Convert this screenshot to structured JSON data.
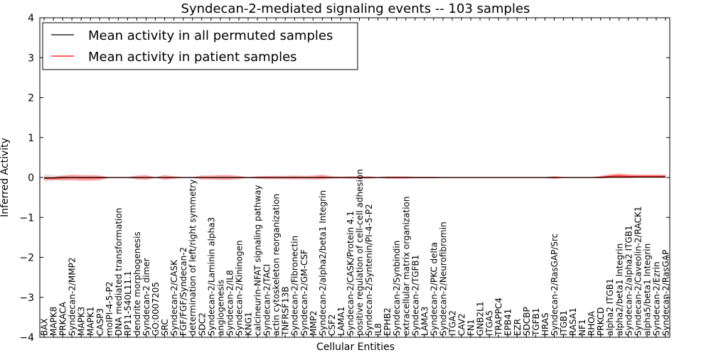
{
  "chart_data": {
    "type": "line",
    "title": "Syndecan-2-mediated signaling events -- 103 samples",
    "xlabel": "Cellular Entities",
    "ylabel": "Inferred Activity",
    "ylim": [
      -4,
      4
    ],
    "yticks": [
      "−4",
      "−3",
      "−2",
      "−1",
      "0",
      "1",
      "2",
      "3",
      "4"
    ],
    "legend_position": "top-left",
    "categories": [
      "BAX",
      "MAPK8",
      "PRKACA",
      "Syndecan-2/MMP2",
      "MAPK3",
      "MAPK1",
      "CASP3",
      "moIPI-4-5-P2",
      "DNA mediated transformation",
      "RP11-540L11.1",
      "dendrite morphogenesis",
      "Syndecan-2 dimer",
      "GO:0007205",
      "SRC",
      "Syndecan-2/CASK",
      "FGF/FGF/Syndecan-2",
      "determination of left/right symmetry",
      "SDC2",
      "Syndecan-2/Laminin alpha3",
      "angiogenesis",
      "Syndecan-2/IL8",
      "Syndecan-2/Kininogen",
      "KNG1",
      "calcineurin-NFAT signaling pathway",
      "Syndecan-2/TACI",
      "actin cytoskeleton reorganization",
      "TNFRSF13B",
      "Syndecan-2/Fibronectin",
      "Syndecan-2/GM-CSF",
      "MMP2",
      "Syndecan-2/alpha2/beta1 Integrin",
      "CSF2",
      "LAMA1",
      "Syndecan-2/CASK/Protein 4.1",
      "positive regulation of cell-cell adhesion",
      "Syndecan-2/Syntenin/PI-4-5-P2",
      "IL8",
      "EPHB2",
      "Syndecan-2/Synbindin",
      "extracellular matrix organization",
      "Syndecan-2/TGFB1",
      "LAMA3",
      "Syndecan-2/PKC delta",
      "Syndecan-2/Neurofibromin",
      "ITGA2",
      "CAV2",
      "FN1",
      "GNB2L1",
      "ITGA5",
      "TRAPPC4",
      "EPB41",
      "EZR",
      "SDCBP",
      "TGFB1",
      "HRAS",
      "Syndecan-2/RasGAP/Src",
      "ITGB1",
      "RASA1",
      "NF1",
      "RHOA",
      "PRKCD",
      "alpha2 ITGB1",
      "alpha2/beta1 Integrin",
      "Syndecan-2/alpha2 ITGB1",
      "Syndecan-2/Caveolin-2/RACK1",
      "alpha5/beta1 Integrin",
      "Syndecan-2/Ezrin",
      "Syndecan-2/RasGAP"
    ],
    "series": [
      {
        "name": "Mean activity in all permuted samples",
        "color": "#000000",
        "values": [
          -0.01,
          -0.01,
          0.0,
          0.0,
          0.0,
          0.0,
          0.0,
          0.0,
          0.0,
          0.0,
          0.0,
          0.0,
          0.0,
          0.0,
          0.0,
          0.0,
          0.0,
          0.0,
          0.0,
          0.0,
          0.0,
          0.0,
          0.0,
          0.0,
          0.0,
          0.0,
          0.0,
          0.0,
          0.0,
          0.0,
          0.0,
          0.0,
          0.0,
          0.0,
          0.0,
          0.0,
          0.0,
          0.0,
          0.0,
          0.0,
          0.0,
          0.0,
          0.0,
          0.0,
          0.0,
          0.0,
          0.0,
          0.0,
          0.0,
          0.0,
          0.0,
          0.0,
          0.0,
          0.0,
          0.0,
          0.0,
          0.0,
          0.0,
          0.0,
          0.0,
          0.0,
          0.01,
          0.01,
          0.01,
          0.01,
          0.01,
          0.01,
          0.01
        ],
        "band": [
          0.1,
          0.07,
          0.04,
          0.03,
          0.02,
          0.02,
          0.02,
          0.01,
          0.01,
          0.01,
          0.01,
          0.01,
          0.01,
          0.01,
          0.01,
          0.01,
          0.01,
          0.01,
          0.01,
          0.01,
          0.01,
          0.01,
          0.01,
          0.01,
          0.01,
          0.01,
          0.01,
          0.01,
          0.01,
          0.01,
          0.01,
          0.01,
          0.01,
          0.01,
          0.01,
          0.01,
          0.01,
          0.01,
          0.01,
          0.01,
          0.01,
          0.01,
          0.01,
          0.01,
          0.01,
          0.01,
          0.01,
          0.01,
          0.01,
          0.01,
          0.01,
          0.01,
          0.01,
          0.01,
          0.01,
          0.01,
          0.01,
          0.01,
          0.01,
          0.01,
          0.01,
          0.01,
          0.01,
          0.01,
          0.01,
          0.01,
          0.01,
          0.01
        ]
      },
      {
        "name": "Mean activity in patient samples",
        "color": "#ff0000",
        "values": [
          -0.02,
          -0.02,
          -0.01,
          0.0,
          -0.01,
          -0.01,
          -0.01,
          0.0,
          0.0,
          0.0,
          0.0,
          0.0,
          0.0,
          0.0,
          0.0,
          0.0,
          0.0,
          0.0,
          0.0,
          0.0,
          0.0,
          0.0,
          0.0,
          0.0,
          0.0,
          0.0,
          0.0,
          0.0,
          0.0,
          0.0,
          0.01,
          0.0,
          0.0,
          0.0,
          0.0,
          0.0,
          0.0,
          0.0,
          0.0,
          0.0,
          0.0,
          0.0,
          0.0,
          0.0,
          0.0,
          0.0,
          0.0,
          0.0,
          0.0,
          0.0,
          0.0,
          0.0,
          0.0,
          0.0,
          0.0,
          0.0,
          0.0,
          0.0,
          0.0,
          0.0,
          0.01,
          0.03,
          0.04,
          0.03,
          0.03,
          0.03,
          0.03,
          0.03
        ],
        "band": [
          0.04,
          0.04,
          0.06,
          0.07,
          0.07,
          0.07,
          0.06,
          0.01,
          0.01,
          0.01,
          0.05,
          0.06,
          0.01,
          0.06,
          0.03,
          0.01,
          0.01,
          0.05,
          0.05,
          0.06,
          0.06,
          0.04,
          0.01,
          0.03,
          0.04,
          0.04,
          0.04,
          0.05,
          0.04,
          0.05,
          0.06,
          0.03,
          0.02,
          0.03,
          0.03,
          0.03,
          0.01,
          0.03,
          0.03,
          0.03,
          0.02,
          0.02,
          0.02,
          0.01,
          0.01,
          0.01,
          0.01,
          0.01,
          0.01,
          0.01,
          0.01,
          0.01,
          0.01,
          0.01,
          0.01,
          0.04,
          0.01,
          0.01,
          0.01,
          0.01,
          0.03,
          0.05,
          0.06,
          0.05,
          0.04,
          0.04,
          0.04,
          0.04
        ]
      }
    ]
  }
}
